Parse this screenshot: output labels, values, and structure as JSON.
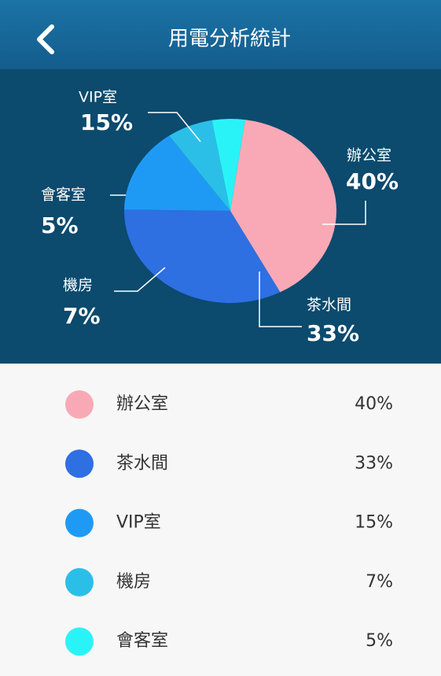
{
  "header": {
    "title": "用電分析統計"
  },
  "chart_data": {
    "type": "pie",
    "categories": [
      "辦公室",
      "茶水間",
      "VIP室",
      "機房",
      "會客室"
    ],
    "values": [
      40,
      33,
      15,
      7,
      5
    ],
    "value_labels": [
      "40%",
      "33%",
      "15%",
      "7%",
      "5%"
    ],
    "colors": [
      "#f9a9b5",
      "#2e6fe2",
      "#1f9af4",
      "#2bbfe8",
      "#2af3f7"
    ]
  }
}
